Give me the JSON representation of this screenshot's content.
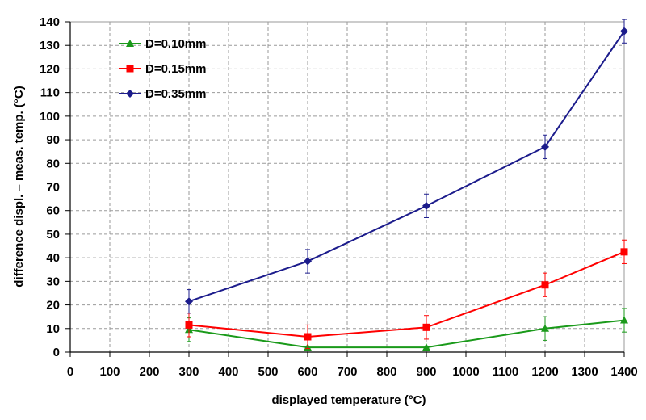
{
  "chart_data": {
    "type": "line",
    "title": "",
    "xlabel": "displayed temperature (°C)",
    "ylabel": "difference displ. – meas. temp. (°C)",
    "xlim": [
      0,
      1400
    ],
    "ylim": [
      0,
      140
    ],
    "x_ticks": [
      0,
      100,
      200,
      300,
      400,
      500,
      600,
      700,
      800,
      900,
      1000,
      1100,
      1200,
      1300,
      1400
    ],
    "y_ticks": [
      0,
      10,
      20,
      30,
      40,
      50,
      60,
      70,
      80,
      90,
      100,
      110,
      120,
      130,
      140
    ],
    "grid": true,
    "legend_position": "top-left",
    "x": [
      300,
      600,
      900,
      1200,
      1400
    ],
    "series": [
      {
        "name": "D=0.10mm",
        "color": "#1a9a1a",
        "marker": "triangle",
        "values": [
          9.5,
          2,
          2,
          10,
          13.5
        ],
        "errors": [
          5,
          0,
          0,
          5,
          5
        ]
      },
      {
        "name": "D=0.15mm",
        "color": "#ff0000",
        "marker": "square",
        "values": [
          11.5,
          6.5,
          10.5,
          28.5,
          42.5
        ],
        "errors": [
          5,
          5,
          5,
          5,
          5
        ]
      },
      {
        "name": "D=0.35mm",
        "color": "#1c1c8c",
        "marker": "diamond",
        "values": [
          21.5,
          38.5,
          62,
          87,
          136
        ],
        "errors": [
          5,
          5,
          5,
          5,
          5
        ]
      }
    ]
  }
}
